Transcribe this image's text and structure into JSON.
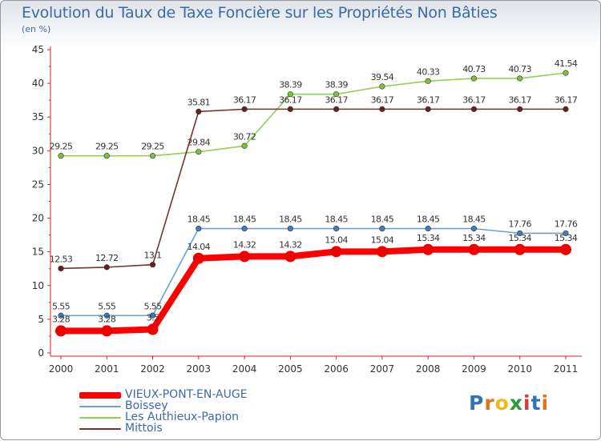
{
  "header": {
    "title": "Evolution du Taux de Taxe Foncière sur les Propriétés Non Bâties",
    "unit": "(en %)"
  },
  "logo": {
    "text": "Proxiti",
    "letters": [
      "P",
      "r",
      "o",
      "x",
      "i",
      "t",
      "i"
    ],
    "colors": [
      "#2f74b8",
      "#e2731c",
      "#f0b81c",
      "#2a9a3c",
      "#d83a3a",
      "#2f74b8",
      "#e2731c"
    ]
  },
  "chart_data": {
    "type": "line",
    "title": "Evolution du Taux de Taxe Foncière sur les Propriétés Non Bâties",
    "ylabel": "(en %)",
    "xlabel": "",
    "x": [
      "2000",
      "2001",
      "2002",
      "2003",
      "2004",
      "2005",
      "2006",
      "2007",
      "2008",
      "2009",
      "2010",
      "2011"
    ],
    "ylim": [
      0,
      45
    ],
    "yticks": [
      "0",
      "5",
      "10",
      "15",
      "20",
      "25",
      "30",
      "35",
      "40",
      "45"
    ],
    "grid": false,
    "legend": "bottom-left",
    "series": [
      {
        "name": "Les Authieux-Papion",
        "color": "#8fd14f",
        "dot": "#7cc23c",
        "thick": false,
        "values": [
          29.25,
          29.25,
          29.25,
          29.84,
          30.72,
          38.39,
          38.39,
          39.54,
          40.33,
          40.73,
          40.73,
          41.54
        ],
        "labels": [
          "29.25",
          "29.25",
          "29.25",
          "29.84",
          "30.72",
          "38.39",
          "38.39",
          "39.54",
          "40.33",
          "40.73",
          "40.73",
          "41.54"
        ]
      },
      {
        "name": "Mittois",
        "color": "#7b3030",
        "dot": "#6a2020",
        "thick": false,
        "values": [
          12.53,
          12.72,
          13.1,
          35.81,
          36.17,
          36.17,
          36.17,
          36.17,
          36.17,
          36.17,
          36.17,
          36.17
        ],
        "labels": [
          "12.53",
          "12.72",
          "13.1",
          "35.81",
          "36.17",
          "36.17",
          "36.17",
          "36.17",
          "36.17",
          "36.17",
          "36.17",
          "36.17"
        ]
      },
      {
        "name": "Boissey",
        "color": "#6fa0cc",
        "dot": "#3c7fc0",
        "thick": false,
        "values": [
          5.55,
          5.55,
          5.55,
          18.45,
          18.45,
          18.45,
          18.45,
          18.45,
          18.45,
          18.45,
          17.76,
          17.76
        ],
        "labels": [
          "5.55",
          "5.55",
          "5.55",
          "18.45",
          "18.45",
          "18.45",
          "18.45",
          "18.45",
          "18.45",
          "18.45",
          "17.76",
          "17.76"
        ]
      },
      {
        "name": "VIEUX-PONT-EN-AUGE",
        "color": "#ff0000",
        "dot": "#ee0000",
        "thick": true,
        "values": [
          3.28,
          3.28,
          3.5,
          14.04,
          14.32,
          14.32,
          15.04,
          15.04,
          15.34,
          15.34,
          15.34,
          15.34
        ],
        "labels": [
          "3.28",
          "3.28",
          "3.5",
          "14.04",
          "14.32",
          "14.32",
          "15.04",
          "15.04",
          "15.34",
          "15.34",
          "15.34",
          "15.34"
        ]
      }
    ],
    "legend_order": [
      "VIEUX-PONT-EN-AUGE",
      "Boissey",
      "Les Authieux-Papion",
      "Mittois"
    ]
  }
}
